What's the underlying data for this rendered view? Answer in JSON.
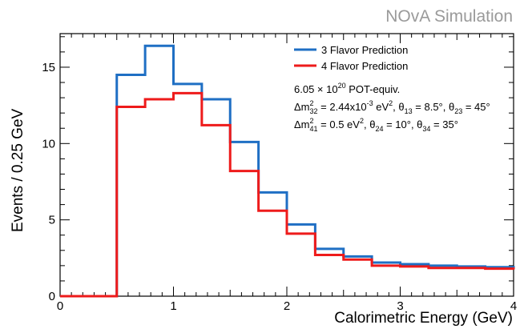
{
  "watermark": "NOvA Simulation",
  "chart_data": {
    "type": "line",
    "style": "step-histogram",
    "xlabel": "Calorimetric Energy (GeV)",
    "ylabel": "Events / 0.25 GeV",
    "xlim": [
      0,
      4
    ],
    "ylim": [
      0,
      17.2
    ],
    "x_ticks": [
      "0",
      "1",
      "2",
      "3",
      "4"
    ],
    "y_ticks": [
      "0",
      "5",
      "10",
      "15"
    ],
    "bin_edges": [
      0,
      0.25,
      0.5,
      0.75,
      1.0,
      1.25,
      1.5,
      1.75,
      2.0,
      2.25,
      2.5,
      2.75,
      3.0,
      3.25,
      3.5,
      3.75,
      4.0
    ],
    "series": [
      {
        "name": "3 Flavor Prediction",
        "color": "#1f6fc4",
        "values": [
          0,
          0,
          14.5,
          16.4,
          13.9,
          12.9,
          10.1,
          6.8,
          4.7,
          3.1,
          2.6,
          2.2,
          2.1,
          2.0,
          1.95,
          1.9,
          1.85
        ]
      },
      {
        "name": "4 Flavor Prediction",
        "color": "#ee1b1b",
        "values": [
          0,
          0,
          12.4,
          12.9,
          13.3,
          11.2,
          8.2,
          5.6,
          4.1,
          2.7,
          2.4,
          2.0,
          1.95,
          1.85,
          1.85,
          1.8,
          1.75
        ]
      }
    ],
    "legend_position": "top-right",
    "annotations": {
      "pot": {
        "prefix": "6.05 × 10",
        "sup": "20",
        "suffix": " POT-equiv."
      },
      "line1": {
        "dm32_symbol": "Δm",
        "dm32_sup": "2",
        "dm32_sub": "32",
        "dm32_value": " = 2.44x10",
        "dm32_exp": "-3",
        "dm32_unit": " eV",
        "dm32_unit_sup": "2",
        "sep1": ", ",
        "theta13_symbol": "θ",
        "theta13_sub": "13",
        "theta13_value": " = 8.5°",
        "sep2": ", ",
        "theta23_symbol": "θ",
        "theta23_sub": "23",
        "theta23_value": " = 45°"
      },
      "line2": {
        "dm41_symbol": "Δm",
        "dm41_sup": "2",
        "dm41_sub": "41",
        "dm41_value": " = 0.5 eV",
        "dm41_unit_sup": "2",
        "sep1": ", ",
        "theta24_symbol": "θ",
        "theta24_sub": "24",
        "theta24_value": " = 10°",
        "sep2": ", ",
        "theta34_symbol": "θ",
        "theta34_sub": "34",
        "theta34_value": " = 35°"
      }
    },
    "grid": false
  },
  "colors": {
    "watermark": "#9a9a9a",
    "axes": "#000000"
  }
}
